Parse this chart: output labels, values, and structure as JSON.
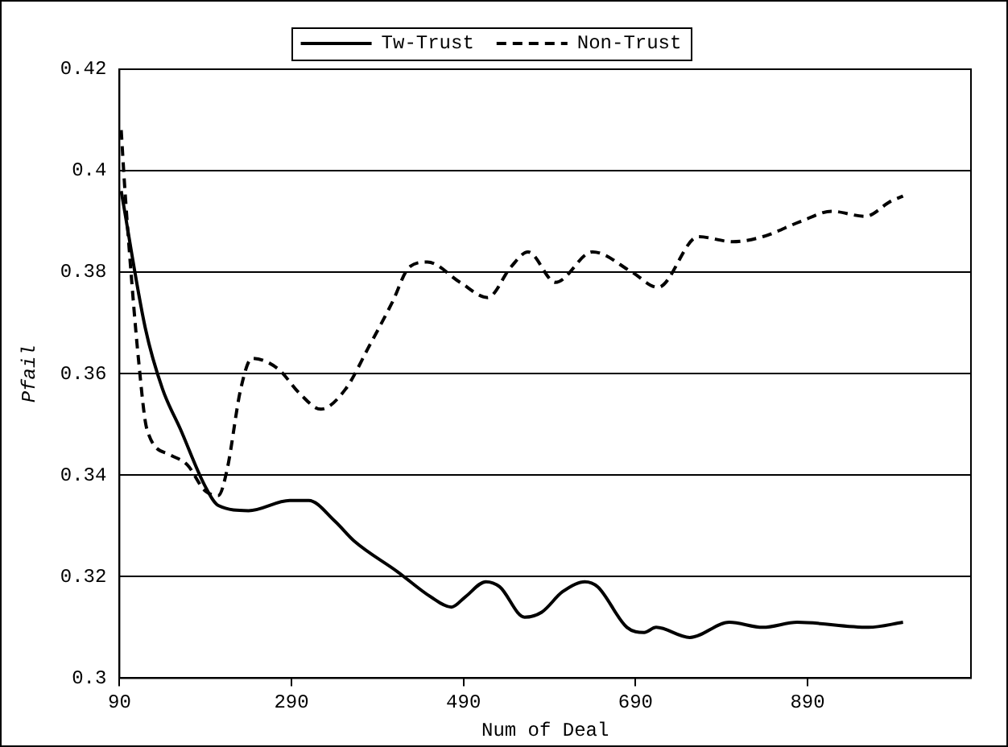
{
  "chart_data": {
    "type": "line",
    "xlabel": "Num of Deal",
    "ylabel": "Pfail",
    "xlim": [
      90,
      1080
    ],
    "xticks": [
      90,
      290,
      490,
      690,
      890
    ],
    "ylim": [
      0.3,
      0.42
    ],
    "yticks": [
      0.3,
      0.32,
      0.34,
      0.36,
      0.38,
      0.4,
      0.42
    ],
    "grid": "y",
    "legend": "top",
    "marker": "none",
    "series": [
      {
        "name": "Tw-Trust",
        "color": "#000000",
        "line_style": "solid",
        "x": [
          92,
          120,
          140,
          161,
          189,
          205,
          240,
          288,
          310,
          340,
          363,
          413,
          452,
          476,
          492,
          516,
          532,
          561,
          581,
          605,
          631,
          646,
          680,
          700,
          714,
          753,
          799,
          838,
          878,
          961,
          1001
        ],
        "values": [
          0.396,
          0.369,
          0.357,
          0.349,
          0.338,
          0.334,
          0.333,
          0.335,
          0.335,
          0.331,
          0.327,
          0.321,
          0.316,
          0.314,
          0.316,
          0.319,
          0.318,
          0.312,
          0.313,
          0.317,
          0.319,
          0.318,
          0.31,
          0.309,
          0.31,
          0.308,
          0.311,
          0.31,
          0.311,
          0.31,
          0.311
        ]
      },
      {
        "name": "Non-Trust",
        "color": "#000000",
        "line_style": "dashed",
        "x": [
          92,
          96,
          102,
          112,
          122,
          149,
          169,
          189,
          205,
          215,
          231,
          244,
          274,
          300,
          324,
          353,
          379,
          407,
          427,
          448,
          486,
          518,
          545,
          565,
          597,
          640,
          686,
          716,
          763,
          803,
          838,
          882,
          918,
          957,
          987,
          1001
        ],
        "values": [
          0.408,
          0.397,
          0.383,
          0.363,
          0.349,
          0.344,
          0.342,
          0.337,
          0.336,
          0.341,
          0.357,
          0.363,
          0.361,
          0.356,
          0.353,
          0.357,
          0.365,
          0.374,
          0.381,
          0.382,
          0.378,
          0.375,
          0.381,
          0.384,
          0.378,
          0.384,
          0.38,
          0.377,
          0.387,
          0.386,
          0.387,
          0.39,
          0.392,
          0.391,
          0.394,
          0.395
        ]
      }
    ]
  }
}
